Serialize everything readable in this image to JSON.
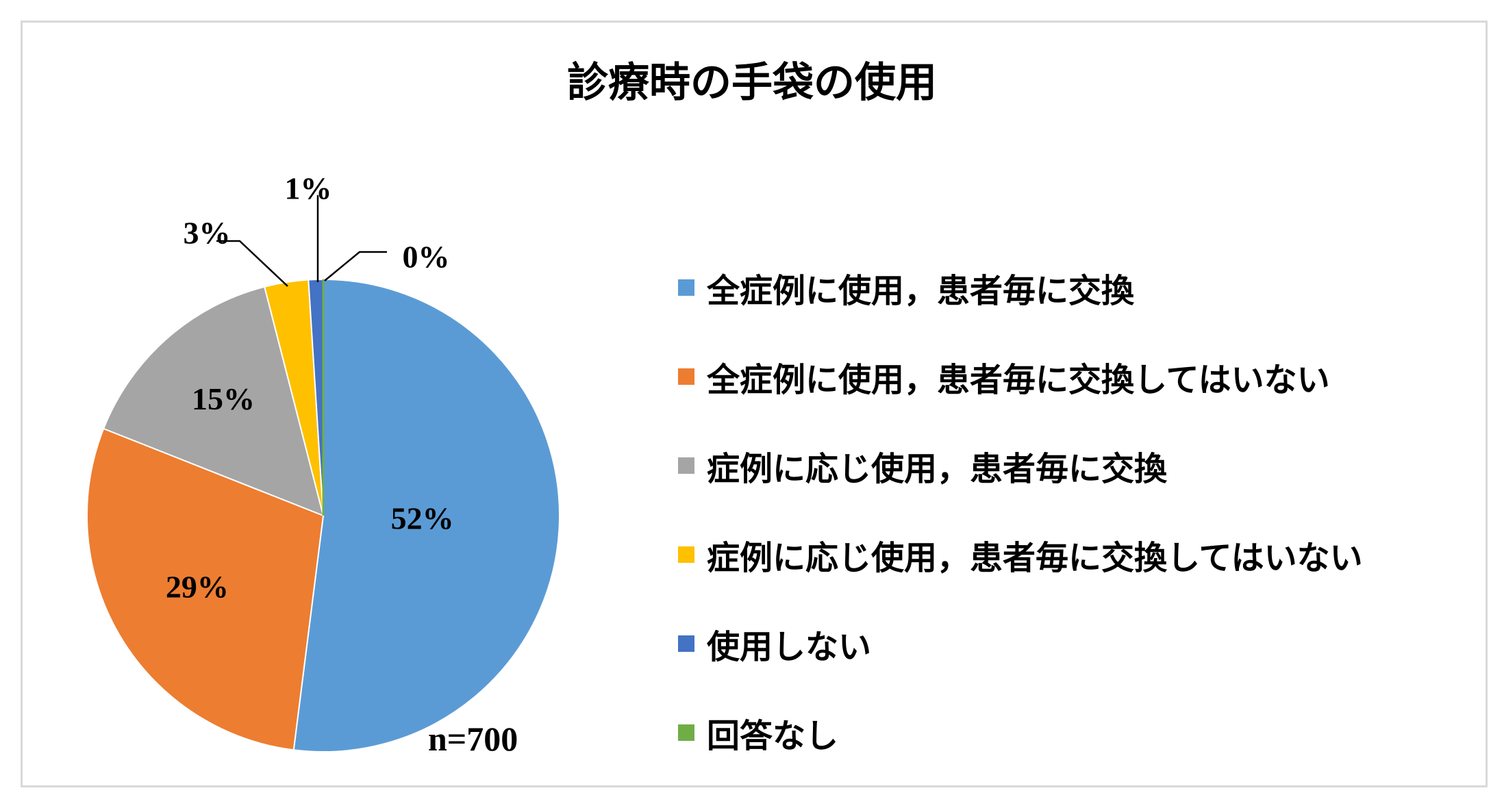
{
  "chart_data": {
    "type": "pie",
    "title": "診療時の手袋の使用",
    "categories": [
      "全症例に使用，患者毎に交換",
      "全症例に使用，患者毎に交換してはいない",
      "症例に応じ使用，患者毎に交換",
      "症例に応じ使用，患者毎に交換してはいない",
      "使用しない",
      "回答なし"
    ],
    "values": [
      52,
      29,
      15,
      3,
      1,
      0
    ],
    "data_labels": [
      "52%",
      "29%",
      "15%",
      "3%",
      "1%",
      "0%"
    ],
    "colors": [
      "#5b9bd5",
      "#ed7d31",
      "#a5a5a5",
      "#ffc000",
      "#4472c4",
      "#70ad47"
    ],
    "legend_position": "right",
    "sample_size_label": "n=700"
  }
}
